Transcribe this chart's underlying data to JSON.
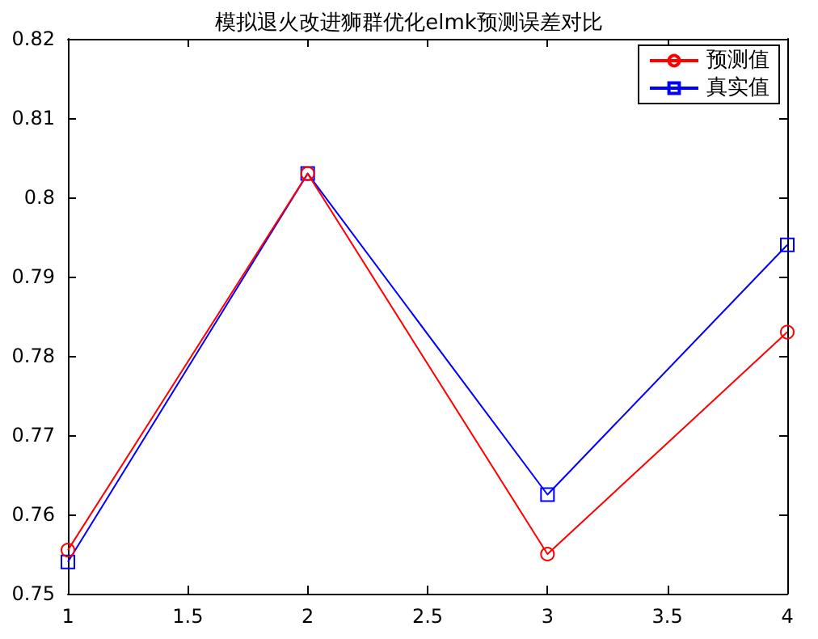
{
  "chart_data": {
    "type": "line",
    "title": "模拟退火改进狮群优化elmk预测误差对比",
    "x": [
      1,
      2,
      3,
      4
    ],
    "series": [
      {
        "name": "预测值",
        "color": "#ff0000",
        "marker": "circle",
        "values": [
          0.7555,
          0.803,
          0.755,
          0.783
        ]
      },
      {
        "name": "真实值",
        "color": "#0000ff",
        "marker": "square",
        "values": [
          0.754,
          0.803,
          0.7625,
          0.794
        ]
      }
    ],
    "xlim": [
      1,
      4
    ],
    "xticks": [
      1,
      1.5,
      2,
      2.5,
      3,
      3.5,
      4
    ],
    "ylim": [
      0.75,
      0.82
    ],
    "yticks": [
      0.75,
      0.76,
      0.77,
      0.78,
      0.79,
      0.8,
      0.81,
      0.82
    ],
    "grid": false,
    "legend": "top right",
    "line_style": "solid"
  }
}
